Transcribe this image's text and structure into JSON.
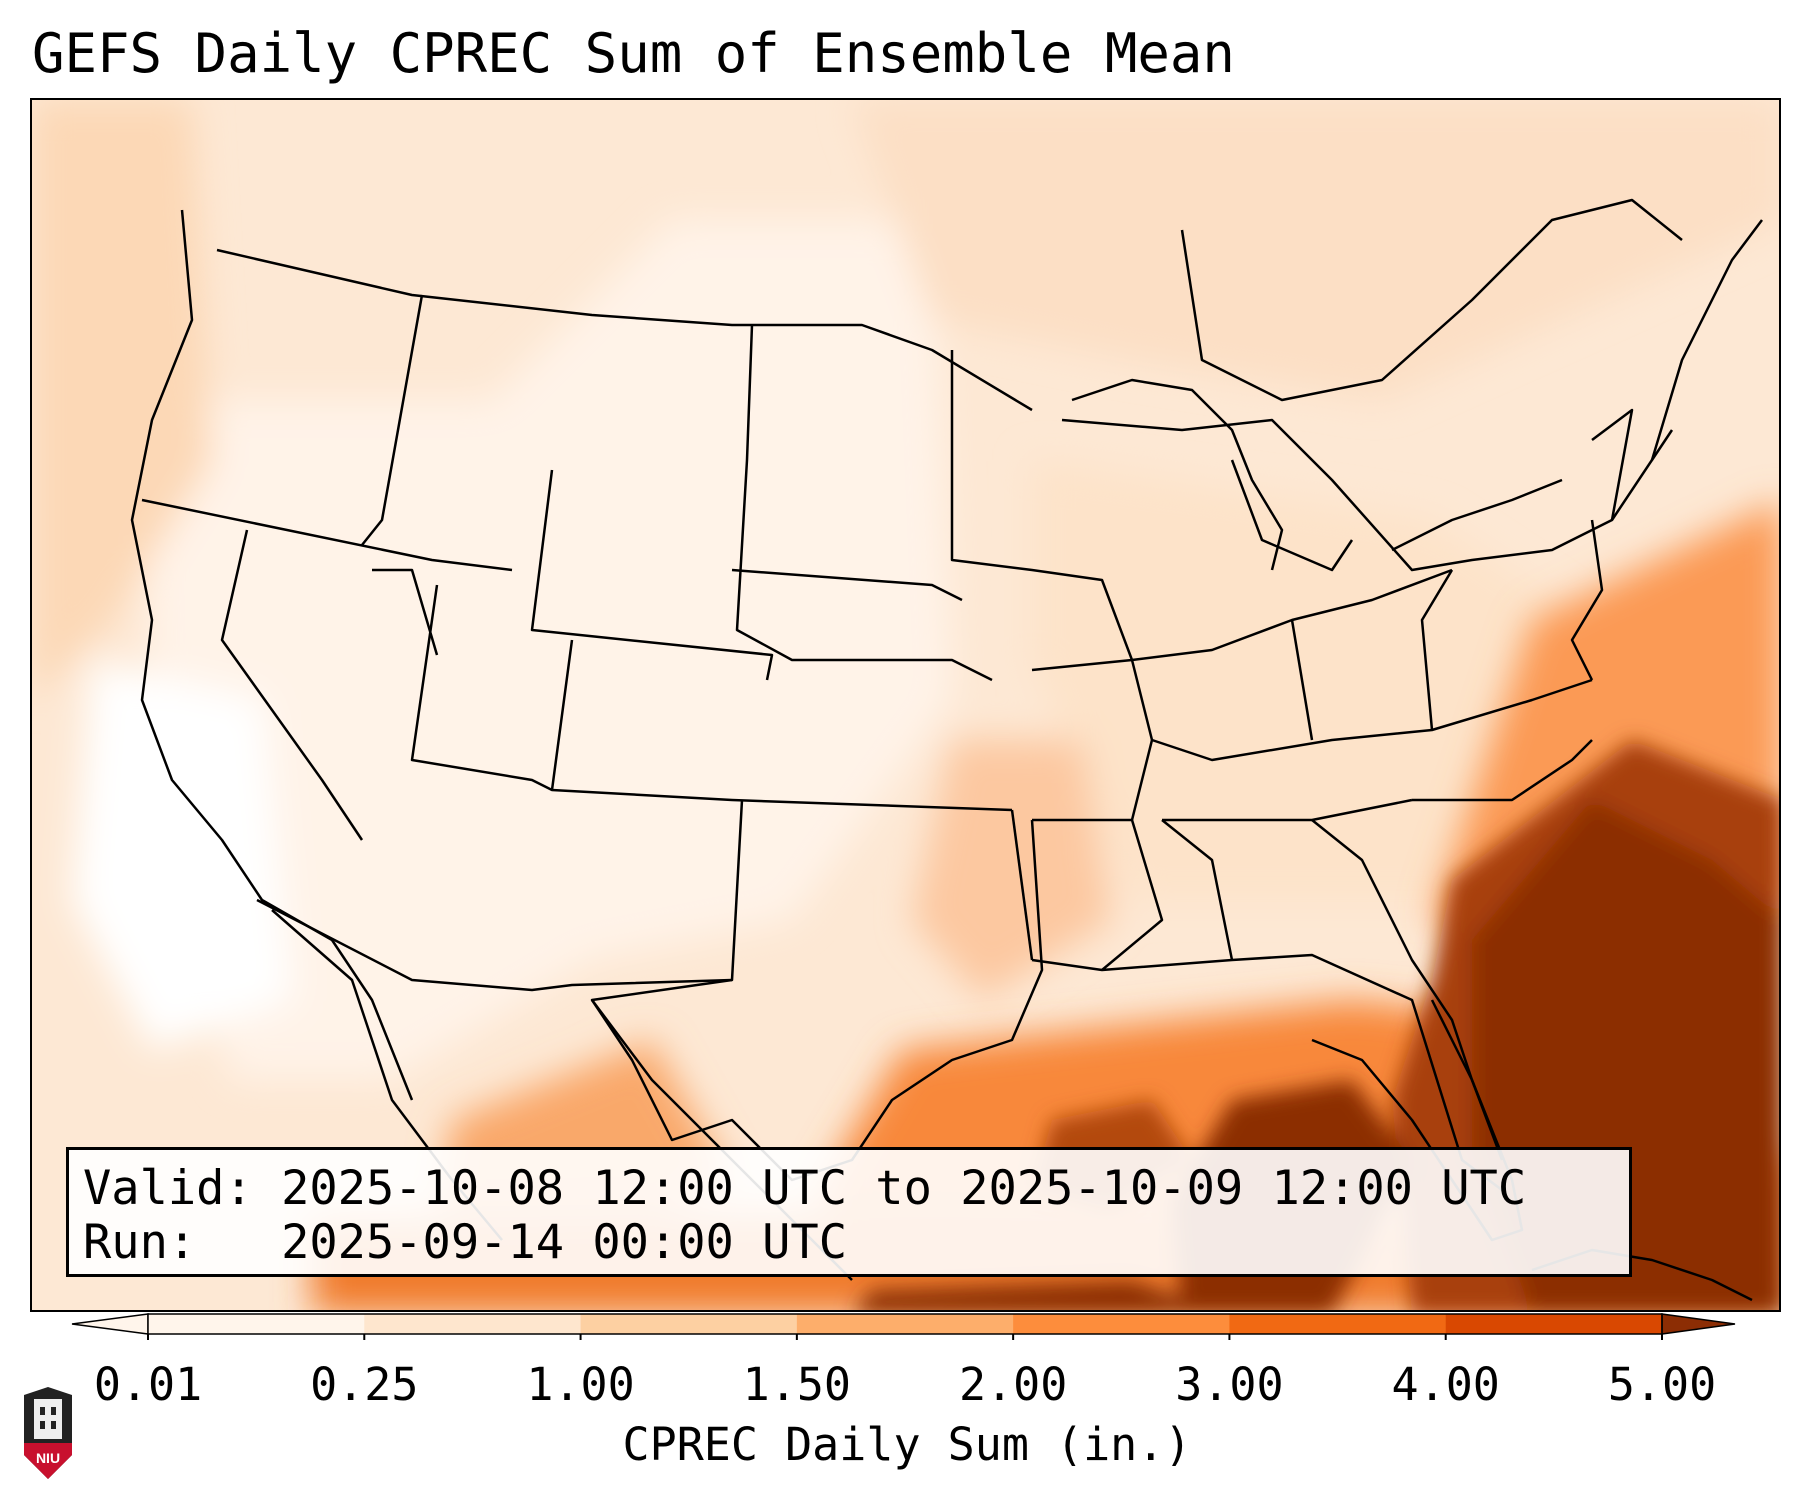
{
  "title": "GEFS Daily CPREC Sum of Ensemble Mean",
  "info": {
    "valid_label": "Valid:",
    "valid_value": "2025-10-08 12:00 UTC to 2025-10-09 12:00 UTC",
    "run_label": "Run:",
    "run_value": "2025-09-14 00:00 UTC"
  },
  "colorbar": {
    "label": "CPREC Daily Sum (in.)",
    "ticks": [
      "0.01",
      "0.25",
      "1.00",
      "1.50",
      "2.00",
      "3.00",
      "4.00",
      "5.00"
    ],
    "colors": [
      "#fff5eb",
      "#fee6ce",
      "#fdd0a2",
      "#fdae6b",
      "#fd8d3c",
      "#f16913",
      "#d94801",
      "#8c2d04"
    ],
    "extend": "both"
  },
  "logo": {
    "text": "NIU",
    "colors": {
      "shield": "#c8102e",
      "tower": "#222222"
    }
  },
  "map": {
    "region": "Contiguous United States",
    "borders_color": "#000000",
    "heaviest_area": "Gulf of Mexico and western Atlantic"
  }
}
